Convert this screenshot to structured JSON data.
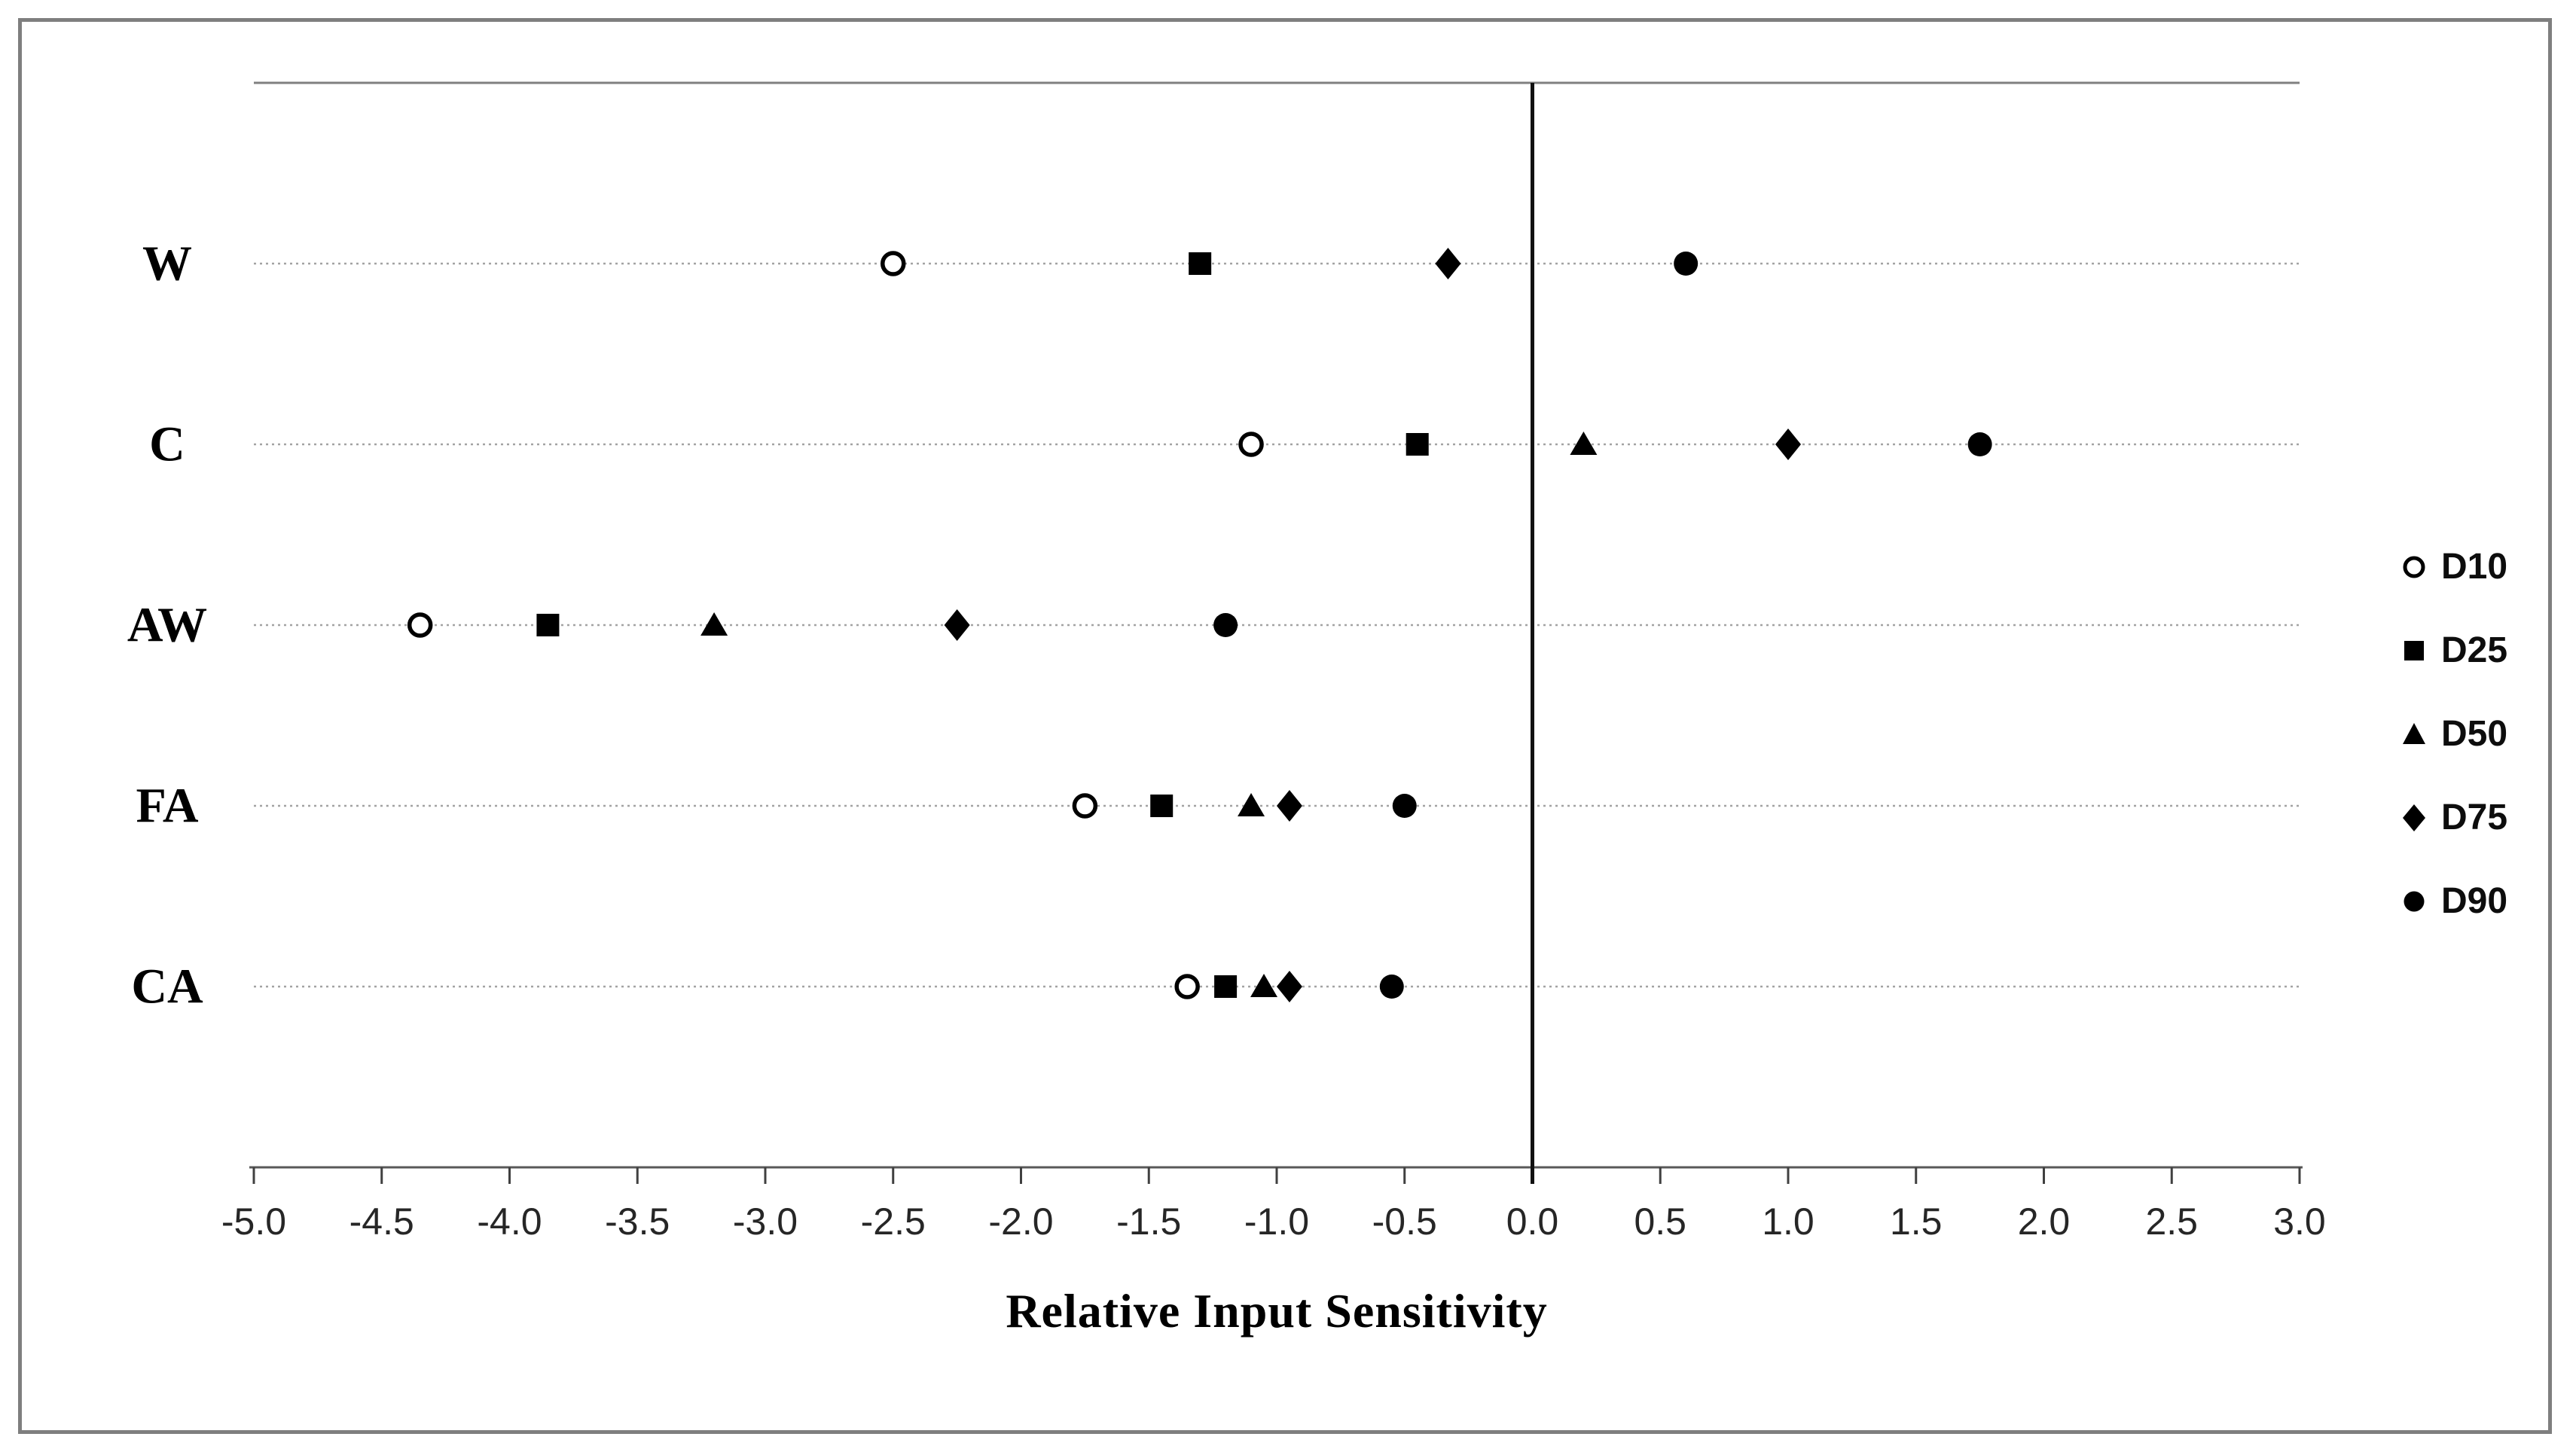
{
  "figure": {
    "border_color": "#7f7f7f",
    "background_color": "#ffffff",
    "gridline_color": "#a3a3a3",
    "axis_line_color": "#595959",
    "zero_line_color": "#111111",
    "marker_color": "#000000"
  },
  "chart_data": {
    "type": "scatter",
    "orientation": "horizontal-category-dot-plot",
    "title": "",
    "xlabel": "Relative Input Sensitivity",
    "ylabel": "",
    "categories": [
      "W",
      "C",
      "AW",
      "FA",
      "CA"
    ],
    "xlim": [
      -5.0,
      3.0
    ],
    "x_tick_step": 0.5,
    "x_ticks": [
      "-5.0",
      "-4.5",
      "-4.0",
      "-3.5",
      "-3.0",
      "-2.5",
      "-2.0",
      "-1.5",
      "-1.0",
      "-0.5",
      "0.0",
      "0.5",
      "1.0",
      "1.5",
      "2.0",
      "2.5",
      "3.0"
    ],
    "grid": "horizontal-dotted",
    "zero_line": true,
    "legend_position": "right-outside",
    "series": [
      {
        "name": "D10",
        "marker": "open-circle",
        "values": [
          -2.5,
          -1.1,
          -4.35,
          -1.75,
          -1.35
        ]
      },
      {
        "name": "D25",
        "marker": "filled-square",
        "values": [
          -1.3,
          -0.45,
          -3.85,
          -1.45,
          -1.2
        ]
      },
      {
        "name": "D50",
        "marker": "filled-triangle",
        "values": [
          null,
          0.2,
          -3.2,
          -1.1,
          -1.05
        ]
      },
      {
        "name": "D75",
        "marker": "filled-diamond",
        "values": [
          -0.33,
          1.0,
          -2.25,
          -0.95,
          -0.95
        ]
      },
      {
        "name": "D90",
        "marker": "filled-circle",
        "values": [
          0.6,
          1.75,
          -1.2,
          -0.5,
          -0.55
        ]
      }
    ]
  }
}
